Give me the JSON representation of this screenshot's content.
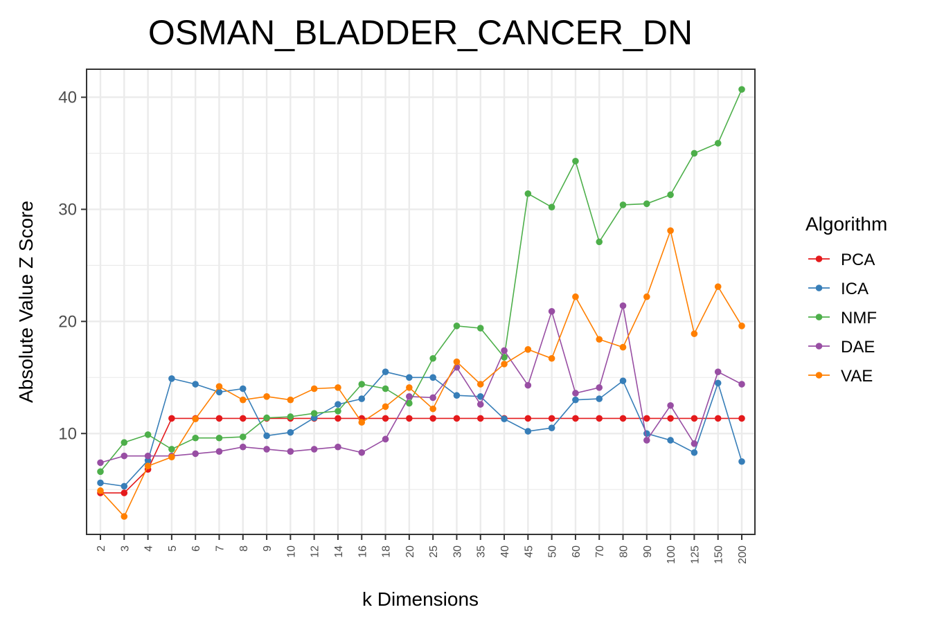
{
  "chart_data": {
    "type": "line",
    "title": "OSMAN_BLADDER_CANCER_DN",
    "xlabel": "k Dimensions",
    "ylabel": "Absolute Value Z Score",
    "ylim": [
      1,
      42.5
    ],
    "yticks": [
      10,
      20,
      30,
      40
    ],
    "grid": true,
    "legend_title": "Algorithm",
    "legend_position": "right",
    "categories": [
      "2",
      "3",
      "4",
      "5",
      "6",
      "7",
      "8",
      "9",
      "10",
      "12",
      "14",
      "16",
      "18",
      "20",
      "25",
      "30",
      "35",
      "40",
      "45",
      "50",
      "60",
      "70",
      "80",
      "90",
      "100",
      "125",
      "150",
      "200"
    ],
    "series": [
      {
        "name": "PCA",
        "color": "#e41a1c",
        "values": [
          4.7,
          4.7,
          6.8,
          11.35,
          11.35,
          11.35,
          11.35,
          11.35,
          11.35,
          11.35,
          11.35,
          11.35,
          11.35,
          11.35,
          11.35,
          11.35,
          11.35,
          11.35,
          11.35,
          11.35,
          11.35,
          11.35,
          11.35,
          11.35,
          11.35,
          11.35,
          11.35,
          11.35
        ]
      },
      {
        "name": "ICA",
        "color": "#377eb8",
        "values": [
          5.6,
          5.3,
          7.6,
          14.9,
          14.4,
          13.7,
          14.0,
          9.8,
          10.1,
          11.4,
          12.6,
          13.1,
          15.5,
          15.0,
          15.0,
          13.4,
          13.3,
          11.3,
          10.2,
          10.5,
          13.0,
          13.1,
          14.7,
          10.0,
          9.4,
          8.3,
          14.5,
          7.5
        ]
      },
      {
        "name": "NMF",
        "color": "#4daf4a",
        "values": [
          6.6,
          9.2,
          9.9,
          8.6,
          9.6,
          9.6,
          9.7,
          11.4,
          11.5,
          11.8,
          12.0,
          14.4,
          14.0,
          12.7,
          16.7,
          19.6,
          19.4,
          16.8,
          31.4,
          30.2,
          34.3,
          27.1,
          30.4,
          30.5,
          31.3,
          35.0,
          35.9,
          40.7
        ]
      },
      {
        "name": "DAE",
        "color": "#984ea3",
        "values": [
          7.4,
          8.0,
          8.0,
          8.0,
          8.2,
          8.4,
          8.8,
          8.6,
          8.4,
          8.6,
          8.8,
          8.3,
          9.5,
          13.3,
          13.2,
          15.9,
          12.6,
          17.4,
          14.3,
          20.9,
          13.6,
          14.1,
          21.4,
          9.4,
          12.5,
          9.1,
          15.5,
          14.4
        ]
      },
      {
        "name": "VAE",
        "color": "#ff7f00",
        "values": [
          4.9,
          2.6,
          7.1,
          7.9,
          11.3,
          14.2,
          13.0,
          13.3,
          13.0,
          14.0,
          14.1,
          11.0,
          12.4,
          14.1,
          12.2,
          16.4,
          14.4,
          16.2,
          17.5,
          16.7,
          22.2,
          18.4,
          17.7,
          22.2,
          28.1,
          18.9,
          23.1,
          19.6
        ]
      }
    ]
  }
}
